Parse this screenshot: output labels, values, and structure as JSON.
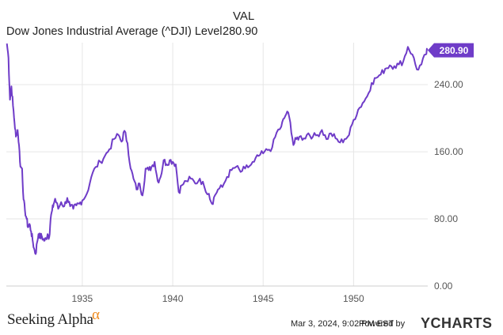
{
  "legend": {
    "header": "VAL",
    "series_name": "Dow Jones Industrial Average (^DJI) Level",
    "series_value": "280.90"
  },
  "footer": {
    "brand_text": "Seeking Alpha",
    "brand_symbol": "α",
    "date_text": "Mar 3, 2024, 9:02 PM EST",
    "powered_text": "Powered by",
    "ycharts_logo": "YCHARTS",
    "ycharts_y": "Y"
  },
  "colors": {
    "line": "#6f3cc8",
    "grid": "#e6e6e6",
    "axis_text": "#555555",
    "brand_accent": "#f08a1c"
  },
  "chart_data": {
    "type": "line",
    "title": "Dow Jones Industrial Average (^DJI) Level",
    "xlabel": "",
    "ylabel": "",
    "xlim": [
      1930.8,
      1954.1
    ],
    "ylim": [
      0,
      290
    ],
    "x_ticks": [
      1935,
      1940,
      1945,
      1950
    ],
    "x_tick_labels": [
      "1935",
      "1940",
      "1945",
      "1950"
    ],
    "y_ticks": [
      0,
      80,
      160,
      240
    ],
    "y_tick_labels": [
      "0.00",
      "80.00",
      "160.00",
      "240.00"
    ],
    "grid": true,
    "last_value_label": "280.90",
    "series": [
      {
        "name": "Dow Jones Industrial Average (^DJI) Level",
        "x": [
          1930.83,
          1930.92,
          1931.0,
          1931.08,
          1931.17,
          1931.25,
          1931.33,
          1931.42,
          1931.5,
          1931.58,
          1931.67,
          1931.75,
          1931.83,
          1931.92,
          1932.0,
          1932.08,
          1932.17,
          1932.25,
          1932.33,
          1932.42,
          1932.5,
          1932.58,
          1932.67,
          1932.75,
          1932.83,
          1932.92,
          1933.0,
          1933.08,
          1933.17,
          1933.25,
          1933.33,
          1933.42,
          1933.5,
          1933.67,
          1933.83,
          1934.0,
          1934.17,
          1934.33,
          1934.5,
          1934.67,
          1934.83,
          1935.0,
          1935.25,
          1935.5,
          1935.75,
          1936.0,
          1936.25,
          1936.5,
          1936.75,
          1937.0,
          1937.17,
          1937.33,
          1937.5,
          1937.67,
          1937.83,
          1938.0,
          1938.17,
          1938.33,
          1938.5,
          1938.67,
          1938.83,
          1939.0,
          1939.17,
          1939.33,
          1939.5,
          1939.67,
          1939.83,
          1940.0,
          1940.17,
          1940.33,
          1940.5,
          1940.75,
          1941.0,
          1941.25,
          1941.5,
          1941.75,
          1942.0,
          1942.17,
          1942.33,
          1942.5,
          1942.75,
          1943.0,
          1943.25,
          1943.5,
          1943.75,
          1944.0,
          1944.25,
          1944.5,
          1944.75,
          1945.0,
          1945.25,
          1945.5,
          1945.75,
          1946.0,
          1946.17,
          1946.33,
          1946.5,
          1946.67,
          1946.83,
          1947.0,
          1947.25,
          1947.5,
          1947.75,
          1948.0,
          1948.25,
          1948.5,
          1948.75,
          1949.0,
          1949.25,
          1949.5,
          1949.75,
          1950.0,
          1950.25,
          1950.5,
          1950.75,
          1951.0,
          1951.25,
          1951.5,
          1951.75,
          1952.0,
          1952.25,
          1952.5,
          1952.75,
          1953.0,
          1953.25,
          1953.5,
          1953.75,
          1954.0,
          1954.08
        ],
        "values": [
          289,
          272,
          222,
          238,
          215,
          195,
          178,
          186,
          168,
          142,
          140,
          103,
          90,
          80,
          70,
          74,
          65,
          55,
          45,
          38,
          52,
          62,
          58,
          60,
          56,
          54,
          57,
          62,
          58,
          80,
          90,
          98,
          104,
          92,
          100,
          95,
          105,
          95,
          92,
          96,
          98,
          102,
          110,
          130,
          142,
          148,
          155,
          163,
          175,
          180,
          172,
          185,
          170,
          140,
          128,
          115,
          122,
          108,
          140,
          138,
          142,
          148,
          125,
          130,
          150,
          145,
          150,
          148,
          145,
          112,
          120,
          125,
          128,
          122,
          128,
          118,
          110,
          98,
          108,
          115,
          118,
          130,
          138,
          142,
          136,
          140,
          143,
          148,
          155,
          158,
          162,
          165,
          183,
          190,
          200,
          208,
          195,
          168,
          175,
          178,
          176,
          182,
          178,
          180,
          186,
          175,
          182,
          176,
          171,
          175,
          180,
          198,
          210,
          218,
          226,
          242,
          248,
          252,
          259,
          263,
          262,
          264,
          268,
          285,
          276,
          258,
          264,
          276,
          280.9
        ]
      }
    ]
  }
}
